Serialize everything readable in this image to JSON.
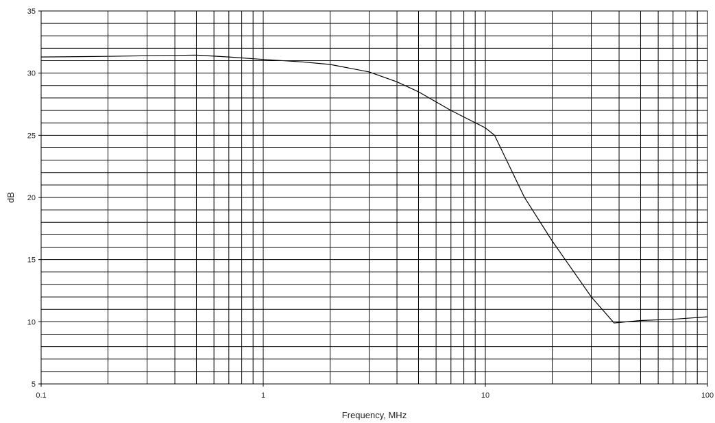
{
  "chart_data": {
    "type": "line",
    "title": "",
    "xlabel": "Frequency, MHz",
    "ylabel": "dB",
    "xscale": "log",
    "xlim": [
      0.1,
      100
    ],
    "ylim": [
      5,
      35
    ],
    "x_ticks": [
      0.1,
      1,
      10,
      100
    ],
    "x_tick_labels": [
      "0.1",
      "1",
      "10",
      "100"
    ],
    "y_ticks": [
      5,
      10,
      15,
      20,
      25,
      30,
      35
    ],
    "y_tick_labels": [
      "5",
      "10",
      "15",
      "20",
      "25",
      "30",
      "35"
    ],
    "grid": true,
    "legend": "none",
    "line_color": "#000000",
    "grid_color": "#000000",
    "series": [
      {
        "x": [
          0.1,
          0.2,
          0.3,
          0.5,
          0.7,
          1,
          1.5,
          2,
          3,
          4,
          5,
          7,
          10,
          11,
          15,
          20,
          30,
          38,
          50,
          70,
          100
        ],
        "y": [
          31.3,
          31.35,
          31.4,
          31.45,
          31.3,
          31.1,
          30.9,
          30.7,
          30.1,
          29.3,
          28.5,
          27.0,
          25.6,
          25.0,
          20.0,
          16.5,
          12.0,
          9.9,
          10.1,
          10.2,
          10.4
        ]
      }
    ]
  }
}
